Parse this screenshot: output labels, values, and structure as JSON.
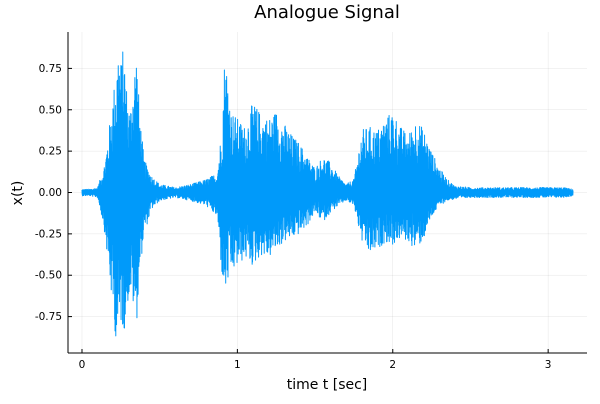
{
  "chart_data": {
    "type": "line",
    "title": "Analogue Signal",
    "xlabel": "time t [sec]",
    "ylabel": "x(t)",
    "xlim": [
      -0.09,
      3.25
    ],
    "ylim": [
      -0.97,
      0.97
    ],
    "x_ticks": [
      0,
      1,
      2,
      3
    ],
    "x_tick_labels": [
      "0",
      "1",
      "2",
      "3"
    ],
    "y_ticks": [
      0.75,
      0.5,
      0.25,
      0.0,
      -0.25,
      -0.5,
      -0.75
    ],
    "y_tick_labels": [
      "0.75",
      "0.50",
      "0.25",
      "0.00",
      "-0.25",
      "-0.50",
      "-0.75"
    ],
    "grid": true,
    "legend": "none",
    "series": [
      {
        "color": "#009AFA",
        "envelope": {
          "t": [
            0.0,
            0.05,
            0.1,
            0.14,
            0.17,
            0.2,
            0.22,
            0.235,
            0.25,
            0.27,
            0.29,
            0.31,
            0.33,
            0.35,
            0.37,
            0.4,
            0.45,
            0.5,
            0.55,
            0.6,
            0.7,
            0.8,
            0.87,
            0.9,
            0.92,
            0.94,
            0.96,
            1.0,
            1.05,
            1.1,
            1.15,
            1.2,
            1.25,
            1.3,
            1.35,
            1.4,
            1.45,
            1.5,
            1.55,
            1.6,
            1.65,
            1.7,
            1.75,
            1.8,
            1.85,
            1.9,
            1.95,
            2.0,
            2.05,
            2.1,
            2.15,
            2.2,
            2.25,
            2.3,
            2.35,
            2.4,
            2.5,
            2.7,
            2.9,
            3.1,
            3.16
          ],
          "upper": [
            0.02,
            0.02,
            0.03,
            0.15,
            0.35,
            0.6,
            0.75,
            0.92,
            0.8,
            0.9,
            0.6,
            0.5,
            0.7,
            0.88,
            0.5,
            0.2,
            0.1,
            0.05,
            0.04,
            0.03,
            0.05,
            0.08,
            0.12,
            0.4,
            0.88,
            0.7,
            0.5,
            0.45,
            0.4,
            0.55,
            0.48,
            0.45,
            0.5,
            0.42,
            0.35,
            0.3,
            0.22,
            0.15,
            0.22,
            0.18,
            0.1,
            0.05,
            0.08,
            0.38,
            0.4,
            0.38,
            0.45,
            0.5,
            0.4,
            0.35,
            0.45,
            0.38,
            0.25,
            0.15,
            0.08,
            0.04,
            0.03,
            0.03,
            0.03,
            0.03,
            0.02
          ],
          "lower": [
            -0.02,
            -0.02,
            -0.03,
            -0.2,
            -0.45,
            -0.75,
            -0.9,
            -0.93,
            -0.8,
            -0.85,
            -0.7,
            -0.6,
            -0.7,
            -0.82,
            -0.5,
            -0.25,
            -0.1,
            -0.05,
            -0.04,
            -0.03,
            -0.05,
            -0.08,
            -0.15,
            -0.5,
            -0.63,
            -0.55,
            -0.5,
            -0.45,
            -0.4,
            -0.45,
            -0.38,
            -0.4,
            -0.35,
            -0.3,
            -0.28,
            -0.25,
            -0.2,
            -0.12,
            -0.18,
            -0.12,
            -0.08,
            -0.05,
            -0.08,
            -0.3,
            -0.38,
            -0.35,
            -0.3,
            -0.32,
            -0.28,
            -0.3,
            -0.35,
            -0.28,
            -0.15,
            -0.08,
            -0.05,
            -0.04,
            -0.03,
            -0.03,
            -0.03,
            -0.03,
            -0.02
          ]
        }
      }
    ]
  }
}
